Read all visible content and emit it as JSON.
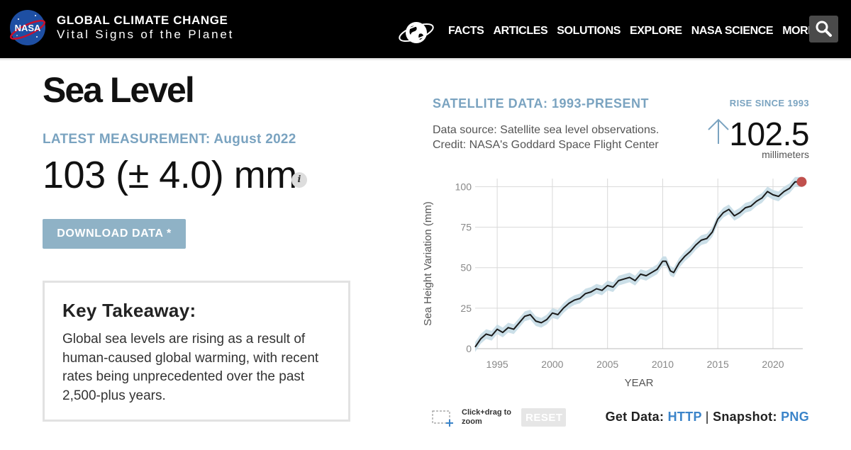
{
  "header": {
    "logo_text": "NASA",
    "site_title": "GLOBAL CLIMATE CHANGE",
    "site_subtitle": "Vital Signs of the Planet",
    "nav": [
      "FACTS",
      "ARTICLES",
      "SOLUTIONS",
      "EXPLORE",
      "NASA SCIENCE",
      "MORE"
    ],
    "search_icon": "search-icon",
    "globe_icon": "earth-globe-icon"
  },
  "main": {
    "title": "Sea Level",
    "latest_label": "LATEST MEASUREMENT: August 2022",
    "measurement": "103 (± 4.0) mm",
    "info_glyph": "i",
    "download_label": "DOWNLOAD DATA *",
    "takeaway_title": "Key Takeaway:",
    "takeaway_text": "Global sea levels are rising as a result of human-caused global warming, with recent rates being unprecedented over the past 2,500-plus years."
  },
  "panel": {
    "satellite_label": "SATELLITE DATA: 1993-PRESENT",
    "source_line1": "Data source: Satellite sea level observations.",
    "source_line2": "Credit: NASA's Goddard Space Flight Center",
    "rise_label": "RISE SINCE 1993",
    "rise_value": "102.5",
    "rise_unit": "millimeters",
    "zoom_hint": "Click+drag to zoom",
    "reset_label": "RESET",
    "get_data_label": "Get Data:",
    "get_data_link": "HTTP",
    "separator": "|",
    "snapshot_label": "Snapshot:",
    "snapshot_link": "PNG"
  },
  "colors": {
    "accent": "#7aa3c0",
    "link": "#3b84c9",
    "line": "#1a1a1a",
    "band": "#c5dbe6",
    "endpoint": "#c0504d"
  },
  "chart_data": {
    "type": "line",
    "xlabel": "YEAR",
    "ylabel": "Sea Height Variation (mm)",
    "xlim": [
      1993,
      2022.7
    ],
    "ylim": [
      0,
      105
    ],
    "xticks": [
      1995,
      2000,
      2005,
      2010,
      2015,
      2020
    ],
    "yticks": [
      0,
      25,
      50,
      75,
      100
    ],
    "grid": true,
    "series": [
      {
        "x": [
          1993.0,
          1993.5,
          1994.0,
          1994.5,
          1995.0,
          1995.5,
          1996.0,
          1996.5,
          1997.0,
          1997.5,
          1998.0,
          1998.5,
          1999.0,
          1999.5,
          2000.0,
          2000.5,
          2001.0,
          2001.5,
          2002.0,
          2002.5,
          2003.0,
          2003.5,
          2004.0,
          2004.5,
          2005.0,
          2005.5,
          2006.0,
          2006.5,
          2007.0,
          2007.5,
          2008.0,
          2008.5,
          2009.0,
          2009.5,
          2010.0,
          2010.3,
          2010.7,
          2011.0,
          2011.5,
          2012.0,
          2012.5,
          2013.0,
          2013.5,
          2014.0,
          2014.5,
          2015.0,
          2015.5,
          2016.0,
          2016.5,
          2017.0,
          2017.5,
          2018.0,
          2018.5,
          2019.0,
          2019.5,
          2020.0,
          2020.5,
          2021.0,
          2021.5,
          2022.0,
          2022.6
        ],
        "values": [
          1,
          6,
          9,
          8,
          12,
          10,
          13,
          12,
          16,
          20,
          21,
          17,
          16,
          18,
          22,
          21,
          25,
          28,
          30,
          31,
          34,
          35,
          37,
          36,
          39,
          38,
          42,
          43,
          44,
          42,
          46,
          45,
          47,
          49,
          54,
          54,
          48,
          47,
          53,
          57,
          60,
          64,
          67,
          68,
          72,
          80,
          84,
          86,
          82,
          84,
          87,
          88,
          91,
          93,
          97,
          95,
          94,
          97,
          99,
          103,
          103
        ]
      }
    ]
  }
}
